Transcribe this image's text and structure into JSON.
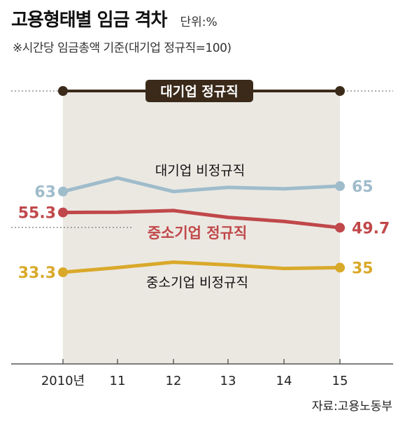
{
  "header": {
    "title": "고용형태별 임금 격차",
    "unit": "단위:%",
    "subtitle": "※시간당 임금총액 기준(대기업 정규직=100)"
  },
  "source": "자료:고용노동부",
  "chart_data": {
    "type": "line",
    "x": [
      "2010년",
      "11",
      "12",
      "13",
      "14",
      "15"
    ],
    "ylim": [
      20,
      105
    ],
    "series": [
      {
        "name": "대기업 정규직",
        "values": [
          100,
          100,
          100,
          100,
          100,
          100
        ],
        "color": "#3b2a1a",
        "start_label": "",
        "end_label": ""
      },
      {
        "name": "대기업 비정규직",
        "values": [
          63,
          68,
          63,
          64.5,
          64,
          65
        ],
        "color": "#9fbccb",
        "start_label": "63",
        "end_label": "65"
      },
      {
        "name": "중소기업 정규직",
        "values": [
          55.3,
          55.4,
          56,
          53.5,
          52,
          49.7
        ],
        "color": "#c0484a",
        "start_label": "55.3",
        "end_label": "49.7"
      },
      {
        "name": "중소기업 비정규직",
        "values": [
          33.3,
          35,
          37,
          36,
          34.7,
          35
        ],
        "color": "#d9a92a",
        "start_label": "33.3",
        "end_label": "35"
      }
    ],
    "label_colors": {
      "대기업 비정규직": "#111111",
      "중소기업 정규직": "#c0484a",
      "중소기업 비정규직": "#111111",
      "대기업 정규직": "#ffffff"
    },
    "shaded_region_color": "#ebe8e2",
    "grid": false
  }
}
